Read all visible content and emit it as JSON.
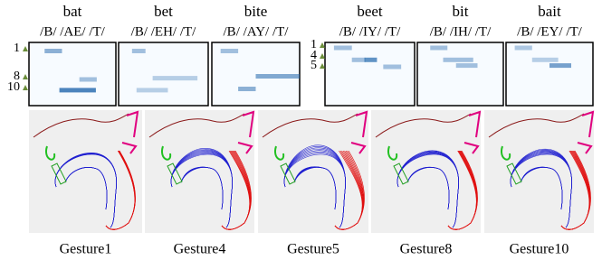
{
  "groups": [
    {
      "ticks": [
        "1",
        "8",
        "10"
      ],
      "columns": [
        {
          "word": "bat",
          "phonemes": "/B/ /AE/ /T/"
        },
        {
          "word": "bet",
          "phonemes": "/B/ /EH/ /T/"
        },
        {
          "word": "bite",
          "phonemes": "/B/ /AY/ /T/"
        }
      ]
    },
    {
      "ticks": [
        "1",
        "4",
        "5"
      ],
      "columns": [
        {
          "word": "beet",
          "phonemes": "/B/ /IY/ /T/"
        },
        {
          "word": "bit",
          "phonemes": "/B/ /IH/ /T/"
        },
        {
          "word": "bait",
          "phonemes": "/B/ /EY/ /T/"
        }
      ]
    }
  ],
  "gestures": [
    "Gesture1",
    "Gesture4",
    "Gesture5",
    "Gesture8",
    "Gesture10"
  ]
}
